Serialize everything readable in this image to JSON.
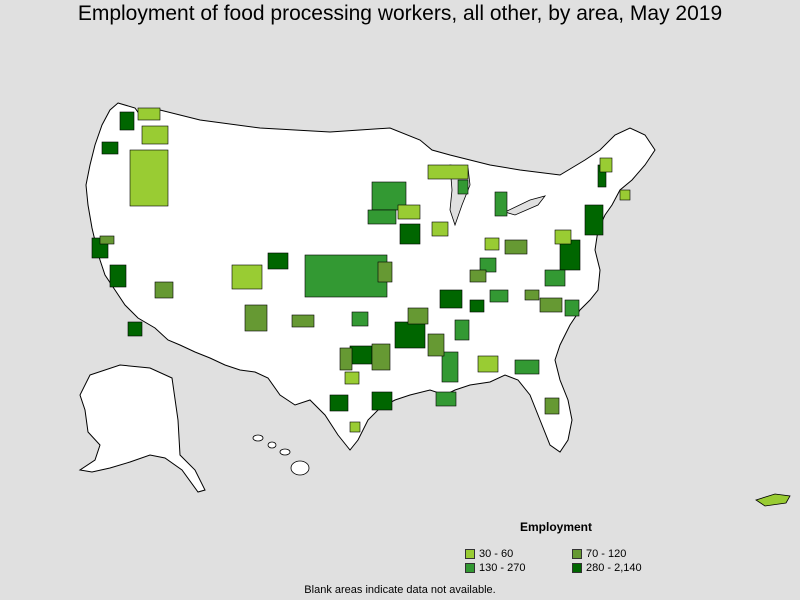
{
  "title": "Employment of food processing workers, all other, by area, May 2019",
  "legend": {
    "title": "Employment",
    "items": [
      {
        "label": "30 - 60",
        "color": "#99cc33"
      },
      {
        "label": "70 - 120",
        "color": "#669933"
      },
      {
        "label": "130 - 270",
        "color": "#339933"
      },
      {
        "label": "280 - 2,140",
        "color": "#006600"
      }
    ]
  },
  "footnote": "Blank areas indicate data not available.",
  "colors": {
    "background": "#e0e0e0",
    "land": "#ffffff",
    "border": "#000000",
    "no_data": "#ffffff"
  }
}
